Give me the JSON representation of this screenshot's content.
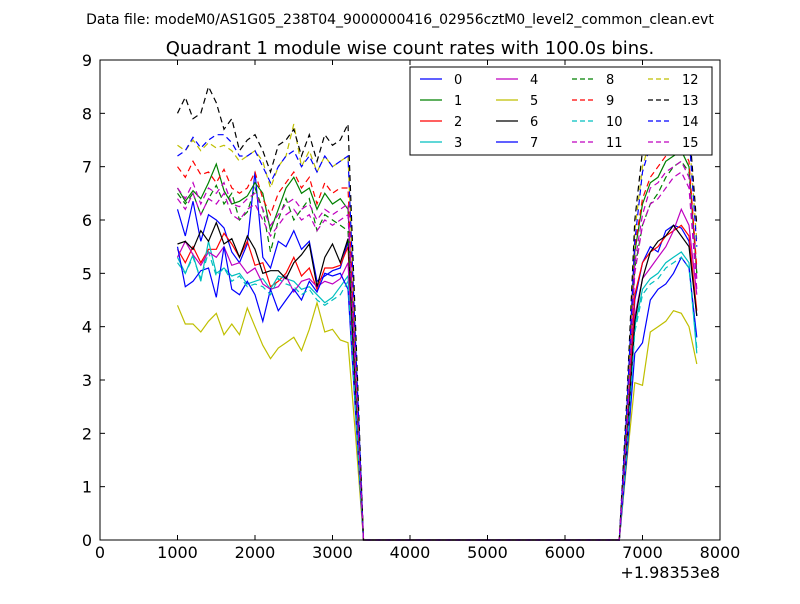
{
  "header": {
    "datafile": "Data file: modeM0/AS1G05_238T04_9000000416_02956cztM0_level2_common_clean.evt"
  },
  "chart_data": {
    "type": "line",
    "title": "Quadrant 1 module wise count rates with 100.0s bins.",
    "xlabel": "",
    "ylabel": "",
    "x_offset_label": "+1.98353e8",
    "xlim": [
      0,
      8000
    ],
    "ylim": [
      0,
      9
    ],
    "xticks": [
      "0",
      "1000",
      "2000",
      "3000",
      "4000",
      "5000",
      "6000",
      "7000",
      "8000"
    ],
    "yticks": [
      "0",
      "1",
      "2",
      "3",
      "4",
      "5",
      "6",
      "7",
      "8",
      "9"
    ],
    "grid": false,
    "legend_placement": "top-right",
    "x": [
      1000,
      1100,
      1200,
      1300,
      1400,
      1500,
      1600,
      1700,
      1800,
      1900,
      2000,
      2100,
      2200,
      2300,
      2400,
      2500,
      2600,
      2700,
      2800,
      2900,
      3000,
      3100,
      3200,
      3300,
      3400,
      3500,
      3600,
      3700,
      3800,
      3900,
      4000,
      4100,
      4200,
      4300,
      4400,
      4500,
      4600,
      4700,
      4800,
      4900,
      5000,
      5100,
      5200,
      5300,
      5400,
      5500,
      5600,
      5700,
      5800,
      5900,
      6000,
      6100,
      6200,
      6300,
      6400,
      6500,
      6600,
      6700,
      6800,
      6900,
      7000,
      7100,
      7200,
      7300,
      7400,
      7500,
      7600,
      7700
    ],
    "series": [
      {
        "name": "0",
        "color": "#0000ff",
        "dash": "solid",
        "values": [
          6.2,
          5.7,
          6.35,
          5.6,
          6.1,
          6.0,
          5.85,
          5.4,
          5.2,
          5.55,
          6.9,
          5.3,
          5.1,
          5.6,
          5.5,
          5.8,
          5.45,
          5.6,
          4.85,
          4.95,
          5.05,
          5.1,
          5.6,
          2.8,
          0,
          0,
          0,
          0,
          0,
          0,
          0,
          0,
          0,
          0,
          0,
          0,
          0,
          0,
          0,
          0,
          0,
          0,
          0,
          0,
          0,
          0,
          0,
          0,
          0,
          0,
          0,
          0,
          0,
          0,
          0,
          0,
          0,
          0,
          2.0,
          4.5,
          5.2,
          5.5,
          5.4,
          5.8,
          5.9,
          5.85,
          5.6,
          4.2
        ]
      },
      {
        "name": "1",
        "color": "#008000",
        "dash": "solid",
        "values": [
          6.6,
          6.35,
          6.55,
          6.4,
          6.7,
          7.05,
          6.55,
          6.3,
          6.35,
          6.45,
          6.7,
          6.5,
          5.8,
          6.2,
          6.6,
          6.8,
          6.5,
          6.6,
          6.2,
          6.5,
          6.3,
          6.4,
          6.2,
          3.2,
          0,
          0,
          0,
          0,
          0,
          0,
          0,
          0,
          0,
          0,
          0,
          0,
          0,
          0,
          0,
          0,
          0,
          0,
          0,
          0,
          0,
          0,
          0,
          0,
          0,
          0,
          0,
          0,
          0,
          0,
          0,
          0,
          0,
          0,
          2.3,
          5.4,
          6.3,
          6.7,
          6.8,
          7.1,
          7.2,
          7.3,
          7.0,
          5.0
        ]
      },
      {
        "name": "2",
        "color": "#ff0000",
        "dash": "solid",
        "values": [
          5.45,
          5.2,
          5.5,
          5.2,
          5.45,
          5.45,
          5.75,
          5.55,
          5.3,
          5.6,
          5.15,
          5.2,
          4.75,
          4.85,
          5.0,
          5.3,
          4.95,
          5.1,
          4.7,
          5.1,
          5.1,
          5.15,
          5.5,
          2.6,
          0,
          0,
          0,
          0,
          0,
          0,
          0,
          0,
          0,
          0,
          0,
          0,
          0,
          0,
          0,
          0,
          0,
          0,
          0,
          0,
          0,
          0,
          0,
          0,
          0,
          0,
          0,
          0,
          0,
          0,
          0,
          0,
          0,
          0,
          1.9,
          4.6,
          5.2,
          5.4,
          5.5,
          5.7,
          5.8,
          5.9,
          5.7,
          4.3
        ]
      },
      {
        "name": "3",
        "color": "#00bfbf",
        "dash": "solid",
        "values": [
          5.3,
          5.0,
          5.35,
          4.85,
          5.6,
          5.0,
          5.1,
          4.95,
          5.0,
          4.8,
          4.85,
          4.9,
          4.7,
          4.95,
          4.9,
          4.85,
          4.7,
          4.75,
          4.6,
          4.45,
          4.55,
          4.75,
          4.95,
          2.4,
          0,
          0,
          0,
          0,
          0,
          0,
          0,
          0,
          0,
          0,
          0,
          0,
          0,
          0,
          0,
          0,
          0,
          0,
          0,
          0,
          0,
          0,
          0,
          0,
          0,
          0,
          0,
          0,
          0,
          0,
          0,
          0,
          0,
          0,
          1.7,
          4.0,
          4.7,
          4.9,
          5.0,
          5.2,
          5.3,
          5.4,
          5.2,
          3.5
        ]
      },
      {
        "name": "4",
        "color": "#bf00bf",
        "dash": "solid",
        "values": [
          5.3,
          5.6,
          5.35,
          5.15,
          5.4,
          5.3,
          5.5,
          5.15,
          5.2,
          5.0,
          5.1,
          4.8,
          4.7,
          4.75,
          4.95,
          4.65,
          4.85,
          4.9,
          4.75,
          4.85,
          4.8,
          4.9,
          5.2,
          2.5,
          0,
          0,
          0,
          0,
          0,
          0,
          0,
          0,
          0,
          0,
          0,
          0,
          0,
          0,
          0,
          0,
          0,
          0,
          0,
          0,
          0,
          0,
          0,
          0,
          0,
          0,
          0,
          0,
          0,
          0,
          0,
          0,
          0,
          0,
          1.8,
          4.2,
          4.9,
          5.1,
          5.3,
          5.5,
          5.8,
          6.2,
          5.9,
          4.6
        ]
      },
      {
        "name": "5",
        "color": "#bfbf00",
        "dash": "solid",
        "values": [
          4.4,
          4.05,
          4.05,
          3.9,
          4.1,
          4.25,
          3.85,
          4.05,
          3.85,
          4.35,
          4.0,
          3.65,
          3.4,
          3.6,
          3.7,
          3.8,
          3.55,
          3.95,
          4.45,
          3.9,
          3.95,
          3.75,
          3.7,
          1.9,
          0,
          0,
          0,
          0,
          0,
          0,
          0,
          0,
          0,
          0,
          0,
          0,
          0,
          0,
          0,
          0,
          0,
          0,
          0,
          0,
          0,
          0,
          0,
          0,
          0,
          0,
          0,
          0,
          0,
          0,
          0,
          0,
          0,
          0,
          1.5,
          2.95,
          2.9,
          3.9,
          4.0,
          4.1,
          4.3,
          4.25,
          4.0,
          3.3
        ]
      },
      {
        "name": "6",
        "color": "#000000",
        "dash": "solid",
        "values": [
          5.55,
          5.6,
          5.45,
          5.8,
          5.6,
          5.95,
          5.55,
          5.65,
          5.3,
          5.7,
          5.45,
          5.0,
          5.05,
          5.05,
          4.9,
          5.2,
          5.35,
          5.55,
          4.75,
          5.3,
          5.55,
          5.2,
          5.65,
          2.7,
          0,
          0,
          0,
          0,
          0,
          0,
          0,
          0,
          0,
          0,
          0,
          0,
          0,
          0,
          0,
          0,
          0,
          0,
          0,
          0,
          0,
          0,
          0,
          0,
          0,
          0,
          0,
          0,
          0,
          0,
          0,
          0,
          0,
          0,
          1.9,
          4.1,
          4.9,
          5.4,
          5.6,
          5.7,
          5.9,
          5.7,
          5.5,
          4.2
        ]
      },
      {
        "name": "7",
        "color": "#0000ff",
        "dash": "solid",
        "values": [
          5.5,
          4.75,
          4.85,
          5.05,
          5.1,
          4.55,
          5.5,
          4.7,
          4.6,
          4.85,
          4.6,
          4.1,
          4.7,
          4.3,
          4.5,
          4.7,
          4.5,
          4.85,
          4.65,
          5.0,
          4.95,
          5.0,
          4.7,
          2.3,
          0,
          0,
          0,
          0,
          0,
          0,
          0,
          0,
          0,
          0,
          0,
          0,
          0,
          0,
          0,
          0,
          0,
          0,
          0,
          0,
          0,
          0,
          0,
          0,
          0,
          0,
          0,
          0,
          0,
          0,
          0,
          0,
          0,
          0,
          1.6,
          3.5,
          3.7,
          4.5,
          4.7,
          4.8,
          5.0,
          5.3,
          5.1,
          3.8
        ]
      },
      {
        "name": "8",
        "color": "#008000",
        "dash": "6,4",
        "values": [
          6.5,
          6.3,
          6.5,
          6.1,
          6.4,
          6.65,
          6.3,
          6.5,
          6.0,
          6.15,
          6.6,
          6.2,
          5.4,
          6.0,
          6.4,
          6.0,
          6.2,
          6.4,
          5.8,
          6.1,
          6.0,
          5.9,
          5.8,
          2.9,
          0,
          0,
          0,
          0,
          0,
          0,
          0,
          0,
          0,
          0,
          0,
          0,
          0,
          0,
          0,
          0,
          0,
          0,
          0,
          0,
          0,
          0,
          0,
          0,
          0,
          0,
          0,
          0,
          0,
          0,
          0,
          0,
          0,
          0,
          2.2,
          5.1,
          5.9,
          6.3,
          6.5,
          6.8,
          7.0,
          7.1,
          6.9,
          5.0
        ]
      },
      {
        "name": "9",
        "color": "#ff0000",
        "dash": "6,4",
        "values": [
          7.0,
          6.8,
          7.1,
          6.85,
          6.9,
          6.7,
          6.95,
          6.6,
          6.5,
          6.6,
          6.9,
          6.4,
          6.1,
          6.5,
          6.7,
          6.9,
          6.6,
          6.8,
          6.3,
          6.7,
          6.5,
          6.6,
          6.6,
          3.3,
          0,
          0,
          0,
          0,
          0,
          0,
          0,
          0,
          0,
          0,
          0,
          0,
          0,
          0,
          0,
          0,
          0,
          0,
          0,
          0,
          0,
          0,
          0,
          0,
          0,
          0,
          0,
          0,
          0,
          0,
          0,
          0,
          0,
          0,
          2.4,
          5.5,
          6.4,
          6.8,
          7.0,
          7.2,
          7.3,
          7.4,
          7.1,
          5.1
        ]
      },
      {
        "name": "10",
        "color": "#00bfbf",
        "dash": "6,4",
        "values": [
          5.2,
          5.0,
          5.3,
          4.9,
          5.4,
          4.95,
          5.1,
          4.85,
          4.95,
          4.75,
          4.8,
          4.75,
          4.6,
          4.9,
          4.8,
          4.75,
          4.6,
          4.7,
          4.5,
          4.4,
          4.5,
          4.6,
          4.85,
          2.4,
          0,
          0,
          0,
          0,
          0,
          0,
          0,
          0,
          0,
          0,
          0,
          0,
          0,
          0,
          0,
          0,
          0,
          0,
          0,
          0,
          0,
          0,
          0,
          0,
          0,
          0,
          0,
          0,
          0,
          0,
          0,
          0,
          0,
          0,
          1.7,
          3.9,
          4.6,
          4.8,
          4.9,
          5.1,
          5.2,
          5.3,
          5.1,
          3.6
        ]
      },
      {
        "name": "11",
        "color": "#bf00bf",
        "dash": "6,4",
        "values": [
          6.6,
          6.4,
          6.7,
          6.3,
          6.6,
          6.5,
          6.7,
          6.3,
          6.25,
          6.4,
          6.5,
          6.2,
          5.9,
          6.1,
          6.3,
          6.4,
          6.2,
          6.3,
          6.0,
          6.2,
          6.1,
          6.2,
          6.3,
          3.1,
          0,
          0,
          0,
          0,
          0,
          0,
          0,
          0,
          0,
          0,
          0,
          0,
          0,
          0,
          0,
          0,
          0,
          0,
          0,
          0,
          0,
          0,
          0,
          0,
          0,
          0,
          0,
          0,
          0,
          0,
          0,
          0,
          0,
          0,
          2.2,
          5.2,
          6.1,
          6.6,
          6.7,
          6.9,
          7.0,
          7.1,
          6.8,
          4.9
        ]
      },
      {
        "name": "12",
        "color": "#bfbf00",
        "dash": "6,4",
        "values": [
          7.4,
          7.3,
          7.5,
          7.3,
          7.45,
          7.35,
          7.4,
          7.3,
          7.1,
          7.2,
          7.3,
          7.1,
          6.6,
          7.0,
          7.2,
          7.8,
          7.0,
          7.3,
          6.9,
          7.2,
          7.0,
          7.1,
          7.2,
          3.6,
          0,
          0,
          0,
          0,
          0,
          0,
          0,
          0,
          0,
          0,
          0,
          0,
          0,
          0,
          0,
          0,
          0,
          0,
          0,
          0,
          0,
          0,
          0,
          0,
          0,
          0,
          0,
          0,
          0,
          0,
          0,
          0,
          0,
          0,
          2.5,
          5.8,
          7.0,
          7.5,
          7.9,
          7.7,
          7.5,
          7.8,
          7.6,
          5.6
        ]
      },
      {
        "name": "13",
        "color": "#000000",
        "dash": "6,4",
        "values": [
          8.0,
          8.3,
          7.9,
          8.0,
          8.5,
          8.2,
          7.7,
          7.9,
          7.3,
          7.5,
          7.6,
          7.3,
          6.9,
          7.4,
          7.5,
          7.7,
          7.2,
          7.6,
          7.1,
          7.6,
          7.4,
          7.5,
          7.8,
          3.9,
          0,
          0,
          0,
          0,
          0,
          0,
          0,
          0,
          0,
          0,
          0,
          0,
          0,
          0,
          0,
          0,
          0,
          0,
          0,
          0,
          0,
          0,
          0,
          0,
          0,
          0,
          0,
          0,
          0,
          0,
          0,
          0,
          0,
          0,
          2.7,
          6.0,
          7.3,
          7.8,
          7.9,
          8.0,
          7.9,
          8.1,
          7.8,
          5.9
        ]
      },
      {
        "name": "14",
        "color": "#0000ff",
        "dash": "6,4",
        "values": [
          7.2,
          7.3,
          7.55,
          7.35,
          7.5,
          7.6,
          7.6,
          7.45,
          7.2,
          7.2,
          7.3,
          7.0,
          6.7,
          7.0,
          7.2,
          7.3,
          7.0,
          7.2,
          6.9,
          7.2,
          7.0,
          7.1,
          7.2,
          3.6,
          0,
          0,
          0,
          0,
          0,
          0,
          0,
          0,
          0,
          0,
          0,
          0,
          0,
          0,
          0,
          0,
          0,
          0,
          0,
          0,
          0,
          0,
          0,
          0,
          0,
          0,
          0,
          0,
          0,
          0,
          0,
          0,
          0,
          0,
          2.5,
          5.6,
          6.9,
          7.4,
          7.6,
          7.8,
          7.9,
          8.0,
          7.6,
          5.5
        ]
      },
      {
        "name": "15",
        "color": "#bf00bf",
        "dash": "6,4",
        "values": [
          6.4,
          6.2,
          6.5,
          6.1,
          6.4,
          6.3,
          6.5,
          6.1,
          6.0,
          6.2,
          6.3,
          6.0,
          5.7,
          5.9,
          6.1,
          6.2,
          6.0,
          6.1,
          5.8,
          6.0,
          5.9,
          6.0,
          6.1,
          3.0,
          0,
          0,
          0,
          0,
          0,
          0,
          0,
          0,
          0,
          0,
          0,
          0,
          0,
          0,
          0,
          0,
          0,
          0,
          0,
          0,
          0,
          0,
          0,
          0,
          0,
          0,
          0,
          0,
          0,
          0,
          0,
          0,
          0,
          0,
          2.1,
          5.0,
          5.9,
          6.3,
          6.4,
          6.6,
          6.8,
          6.9,
          6.6,
          4.7
        ]
      }
    ]
  }
}
